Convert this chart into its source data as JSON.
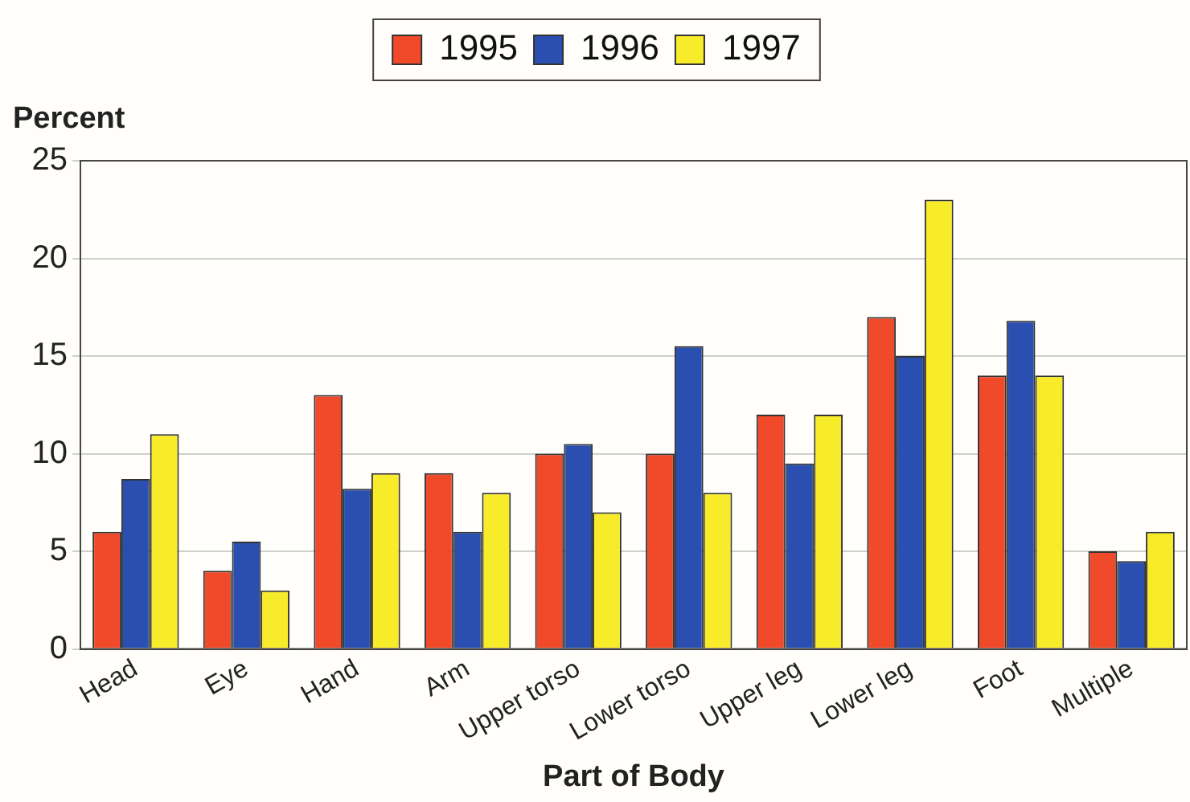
{
  "chart_data": {
    "type": "bar",
    "xlabel": "Part of Body",
    "ylabel": "Percent",
    "categories": [
      "Head",
      "Eye",
      "Hand",
      "Arm",
      "Upper torso",
      "Lower torso",
      "Upper leg",
      "Lower leg",
      "Foot",
      "Multiple"
    ],
    "series": [
      {
        "name": "1995",
        "color": "#f04a2a",
        "values": [
          6,
          4,
          13,
          9,
          10,
          10,
          12,
          17,
          14,
          5
        ]
      },
      {
        "name": "1996",
        "color": "#2a4fb0",
        "values": [
          8.7,
          5.5,
          8.2,
          6,
          10.5,
          15.5,
          9.5,
          15,
          16.8,
          4.5
        ]
      },
      {
        "name": "1997",
        "color": "#f8ec2a",
        "values": [
          11,
          3,
          9,
          8,
          7,
          8,
          12,
          23,
          14,
          6
        ]
      }
    ],
    "ylim": [
      0,
      25
    ],
    "yticks": [
      0,
      5,
      10,
      15,
      20,
      25
    ],
    "grid": "y",
    "legend": "top"
  }
}
